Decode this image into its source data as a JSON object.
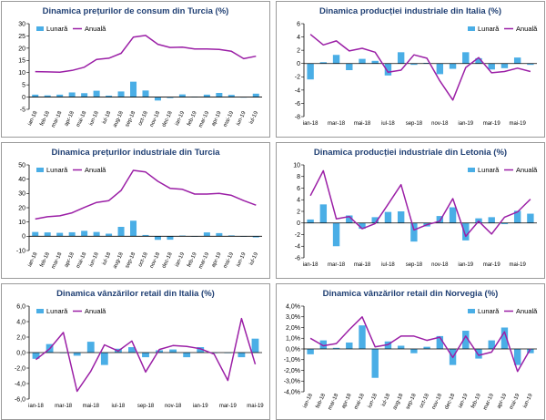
{
  "colors": {
    "bar": "#4aaee6",
    "line": "#9b1fa6",
    "title": "#1f3f73",
    "axis": "#000000"
  },
  "chart_data": [
    {
      "type": "bar+line",
      "title": "Dinamica prețurilor de consum din Turcia (%)",
      "legend": [
        "Lunară",
        "Anuală"
      ],
      "legend_position": "top-left",
      "ylim": [
        -5,
        30
      ],
      "yticks": [
        "-5",
        "0",
        "5",
        "10",
        "15",
        "20",
        "25",
        "30"
      ],
      "ytick_values": [
        -5,
        0,
        5,
        10,
        15,
        20,
        25,
        30
      ],
      "categories": [
        "ian-18",
        "feb-18",
        "mar-18",
        "apr-18",
        "mai-18",
        "iun-18",
        "iul-18",
        "aug-18",
        "sep-18",
        "oct-18",
        "nov-18",
        "dec-18",
        "ian-19",
        "feb-19",
        "mar-19",
        "apr-19",
        "mai-19",
        "iun-19",
        "iul-19"
      ],
      "label_every": 1,
      "label_rotate": true,
      "series": [
        {
          "name": "Lunară",
          "kind": "bar",
          "values": [
            1.0,
            0.7,
            1.0,
            1.9,
            1.6,
            2.6,
            0.6,
            2.3,
            6.3,
            2.7,
            -1.4,
            -0.4,
            1.1,
            0.2,
            1.0,
            1.7,
            0.9,
            0.0,
            1.4
          ]
        },
        {
          "name": "Anuală",
          "kind": "line",
          "values": [
            10.4,
            10.3,
            10.2,
            10.9,
            12.2,
            15.4,
            15.9,
            17.9,
            24.5,
            25.2,
            21.6,
            20.3,
            20.4,
            19.7,
            19.7,
            19.5,
            18.7,
            15.7,
            16.7
          ]
        }
      ]
    },
    {
      "type": "bar+line",
      "title": "Dinamica producției industriale din Italia (%)",
      "legend": [
        "Lunară",
        "Anuală"
      ],
      "legend_position": "top-right",
      "ylim": [
        -8,
        6
      ],
      "yticks": [
        "-8",
        "-6",
        "-4",
        "-2",
        "0",
        "2",
        "4",
        "6"
      ],
      "ytick_values": [
        -8,
        -6,
        -4,
        -2,
        0,
        2,
        4,
        6
      ],
      "categories": [
        "ian-18",
        "feb-18",
        "mar-18",
        "apr-18",
        "mai-18",
        "iun-18",
        "iul-18",
        "aug-18",
        "sep-18",
        "oct-18",
        "nov-18",
        "dec-18",
        "ian-19",
        "feb-19",
        "mar-19",
        "apr-19",
        "mai-19",
        "iun-19"
      ],
      "label_every": 2,
      "label_rotate": false,
      "series": [
        {
          "name": "Lunară",
          "kind": "bar",
          "values": [
            -2.4,
            0.2,
            1.3,
            -1.0,
            0.7,
            0.4,
            -1.8,
            1.7,
            -0.2,
            0.1,
            -1.6,
            -0.8,
            1.7,
            0.8,
            -0.9,
            -0.7,
            0.9,
            -0.2
          ]
        },
        {
          "name": "Anuală",
          "kind": "line",
          "values": [
            4.4,
            2.8,
            3.4,
            1.9,
            2.3,
            1.7,
            -1.3,
            -1.0,
            1.3,
            0.8,
            -2.6,
            -5.5,
            -0.6,
            0.9,
            -1.4,
            -1.2,
            -0.7,
            -1.2
          ]
        }
      ]
    },
    {
      "type": "bar+line",
      "title": "Dinamica prețurilor industriale din Turcia",
      "legend": [
        "Lunară",
        "Anuală"
      ],
      "legend_position": "top-left",
      "ylim": [
        -10,
        50
      ],
      "yticks": [
        "-10",
        "0",
        "10",
        "20",
        "30",
        "40",
        "50"
      ],
      "ytick_values": [
        -10,
        0,
        10,
        20,
        30,
        40,
        50
      ],
      "categories": [
        "ian-18",
        "feb-18",
        "mar-18",
        "apr-18",
        "mai-18",
        "iun-18",
        "iul-18",
        "aug-18",
        "sep-18",
        "oct-18",
        "nov-18",
        "dec-18",
        "ian-19",
        "feb-19",
        "mar-19",
        "apr-19",
        "mai-19",
        "iun-19",
        "iul-19"
      ],
      "label_every": 1,
      "label_rotate": true,
      "series": [
        {
          "name": "Lunară",
          "kind": "bar",
          "values": [
            3.0,
            2.7,
            2.4,
            2.8,
            3.8,
            3.0,
            1.8,
            6.6,
            10.9,
            0.9,
            -2.5,
            -2.4,
            0.5,
            0.1,
            2.7,
            2.2,
            0.6,
            0.1,
            -0.8
          ]
        },
        {
          "name": "Anuală",
          "kind": "line",
          "values": [
            12.1,
            13.7,
            14.3,
            16.4,
            20.2,
            23.7,
            25.0,
            32.1,
            46.2,
            45.0,
            38.5,
            33.6,
            32.9,
            29.6,
            29.6,
            30.1,
            28.7,
            25.0,
            21.8
          ]
        }
      ]
    },
    {
      "type": "bar+line",
      "title": "Dinamica producției industriale din Letonia (%)",
      "legend": [
        "Lunară",
        "Anuală"
      ],
      "legend_position": "top-right",
      "ylim": [
        -6,
        10
      ],
      "yticks": [
        "-6",
        "-4",
        "-2",
        "0",
        "2",
        "4",
        "6",
        "8",
        "10"
      ],
      "ytick_values": [
        -6,
        -4,
        -2,
        0,
        2,
        4,
        6,
        8,
        10
      ],
      "categories": [
        "ian-18",
        "feb-18",
        "mar-18",
        "apr-18",
        "mai-18",
        "iun-18",
        "iul-18",
        "aug-18",
        "sep-18",
        "oct-18",
        "nov-18",
        "dec-18",
        "ian-19",
        "feb-19",
        "mar-19",
        "apr-19",
        "mai-19",
        "iun-19"
      ],
      "label_every": 2,
      "label_rotate": false,
      "series": [
        {
          "name": "Lunară",
          "kind": "bar",
          "values": [
            0.6,
            3.2,
            -4.0,
            1.3,
            -1.0,
            1.0,
            1.9,
            2.0,
            -3.2,
            -0.6,
            1.2,
            2.7,
            -3.0,
            0.8,
            1.0,
            -0.2,
            2.1,
            1.6
          ]
        },
        {
          "name": "Anuală",
          "kind": "line",
          "values": [
            4.7,
            9.0,
            0.7,
            1.1,
            -1.0,
            -0.1,
            3.2,
            6.6,
            -1.2,
            -0.3,
            0.3,
            4.2,
            -2.3,
            0.3,
            -1.9,
            1.0,
            1.9,
            4.1
          ]
        }
      ]
    },
    {
      "type": "bar+line",
      "title": "Dinamica vânzărilor retail din Italia (%)",
      "legend": [
        "Lunară",
        "Anuală"
      ],
      "legend_position": "top-left",
      "ylim": [
        -6,
        6
      ],
      "yticks": [
        "-6,0",
        "-4,0",
        "-2,0",
        "0,0",
        "2,0",
        "4,0",
        "6,0"
      ],
      "ytick_values": [
        -6,
        -4,
        -2,
        0,
        2,
        4,
        6
      ],
      "categories": [
        "ian-18",
        "feb-18",
        "mar-18",
        "apr-18",
        "mai-18",
        "iun-18",
        "iul-18",
        "aug-18",
        "sep-18",
        "oct-18",
        "nov-18",
        "dec-18",
        "ian-19",
        "feb-19",
        "mar-19",
        "apr-19",
        "mai-19"
      ],
      "label_every": 2,
      "label_rotate": false,
      "series": [
        {
          "name": "Lunară",
          "kind": "bar",
          "values": [
            -0.8,
            1.1,
            0.0,
            -0.4,
            1.4,
            -1.6,
            0.5,
            0.7,
            -0.6,
            0.3,
            0.4,
            -0.6,
            0.7,
            0.0,
            0.0,
            -0.6,
            1.8
          ]
        },
        {
          "name": "Anuală",
          "kind": "line",
          "values": [
            -0.9,
            0.5,
            2.6,
            -5.0,
            -2.4,
            1.0,
            0.2,
            1.5,
            -2.5,
            0.4,
            0.9,
            0.8,
            0.5,
            -0.2,
            -3.6,
            4.4,
            -1.5
          ]
        }
      ]
    },
    {
      "type": "bar+line",
      "title": "Dinamica vânzărilor retail din Norvegia (%)",
      "legend": [
        "Lunară",
        "Anuală"
      ],
      "legend_position": "top-right",
      "ylim": [
        -4,
        4
      ],
      "yticks": [
        "-4,0%",
        "-3,0%",
        "-2,0%",
        "-1,0%",
        "0,0%",
        "1,0%",
        "2,0%",
        "3,0%",
        "4,0%"
      ],
      "ytick_values": [
        -4,
        -3,
        -2,
        -1,
        0,
        1,
        2,
        3,
        4
      ],
      "categories": [
        "ian-18",
        "feb-18",
        "mar-18",
        "apr-18",
        "mai-18",
        "iun-18",
        "iul-18",
        "aug-18",
        "sep-18",
        "oct-18",
        "nov-18",
        "dec-18",
        "ian-19",
        "feb-19",
        "mar-19",
        "apr-19",
        "mai-19",
        "iun-19"
      ],
      "label_every": 1,
      "label_rotate": true,
      "series": [
        {
          "name": "Lunară",
          "kind": "bar",
          "values": [
            -0.5,
            0.8,
            0.1,
            0.6,
            2.2,
            -2.7,
            0.7,
            0.3,
            -0.4,
            0.2,
            1.2,
            -1.5,
            1.7,
            -0.9,
            0.8,
            2.0,
            -1.5,
            -0.4
          ]
        },
        {
          "name": "Anuală",
          "kind": "line",
          "values": [
            1.0,
            0.3,
            0.5,
            1.8,
            3.0,
            0.2,
            0.4,
            1.2,
            1.2,
            0.8,
            1.1,
            -0.8,
            1.2,
            -0.6,
            -0.3,
            1.6,
            -2.1,
            0.0
          ]
        }
      ]
    }
  ]
}
